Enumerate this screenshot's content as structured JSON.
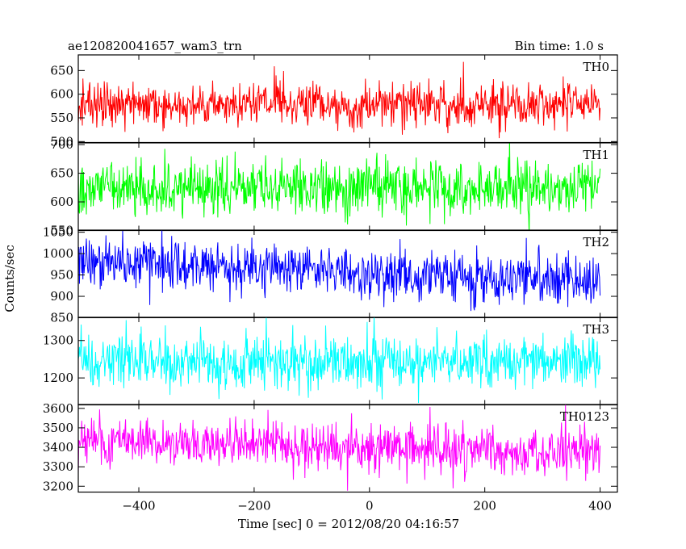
{
  "header": {
    "title": "ae120820041657_wam3_trn",
    "bin_time": "Bin time: 1.0 s"
  },
  "axes": {
    "ylabel": "Counts/sec",
    "xlabel": "Time [sec] 0 = 2012/08/20 04:16:57"
  },
  "chart_data": {
    "type": "line",
    "title": "ae120820041657_wam3_trn",
    "subtitle": "Bin time: 1.0 s",
    "xlabel": "Time [sec] 0 = 2012/08/20 04:16:57",
    "ylabel": "Counts/sec",
    "xlim": [
      -505,
      430
    ],
    "x_data_range": [
      -505,
      400
    ],
    "x_step": 1.0,
    "x_ticks": [
      -400,
      -200,
      0,
      200,
      400
    ],
    "x_tick_labels": [
      "−400",
      "−200",
      "0",
      "200",
      "400"
    ],
    "grid": false,
    "legend": "none",
    "series": [
      {
        "name": "TH0",
        "color": "#ff0000",
        "ylim": [
          498,
          683
        ],
        "y_ticks": [
          500,
          550,
          600,
          650
        ],
        "y_tick_labels": [
          "500",
          "550",
          "600",
          "650"
        ],
        "mean_start": 578,
        "mean_end": 578,
        "spread": 23
      },
      {
        "name": "TH1",
        "color": "#00ff00",
        "ylim": [
          550,
          703
        ],
        "y_ticks": [
          550,
          600,
          650,
          700
        ],
        "y_tick_labels": [
          "550",
          "600",
          "650",
          "700"
        ],
        "mean_start": 625,
        "mean_end": 625,
        "spread": 24
      },
      {
        "name": "TH2",
        "color": "#0000ff",
        "ylim": [
          850,
          1055
        ],
        "y_ticks": [
          850,
          900,
          950,
          1000,
          1050
        ],
        "y_tick_labels": [
          "850",
          "900",
          "950",
          "1000",
          "1050"
        ],
        "mean_start": 985,
        "mean_end": 930,
        "spread": 30
      },
      {
        "name": "TH3",
        "color": "#00ffff",
        "ylim": [
          1128,
          1362
        ],
        "y_ticks": [
          1200,
          1300
        ],
        "y_tick_labels": [
          "1200",
          "1300"
        ],
        "mean_start": 1245,
        "mean_end": 1245,
        "spread": 36
      },
      {
        "name": "TH0123",
        "color": "#ff00ff",
        "ylim": [
          3170,
          3620
        ],
        "y_ticks": [
          3200,
          3300,
          3400,
          3500,
          3600
        ],
        "y_tick_labels": [
          "3200",
          "3300",
          "3400",
          "3500",
          "3600"
        ],
        "mean_start": 3440,
        "mean_end": 3370,
        "spread": 62
      }
    ]
  }
}
